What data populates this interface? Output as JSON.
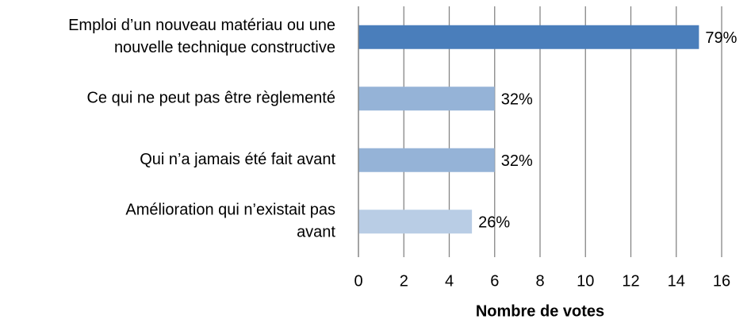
{
  "chart_data": {
    "type": "bar",
    "orientation": "horizontal",
    "categories": [
      "Emploi d’un nouveau matériau ou une nouvelle technique constructive",
      "Ce qui ne peut pas être règlementé",
      "Qui n’a jamais été fait avant",
      "Amélioration qui n’existait pas avant"
    ],
    "values": [
      15,
      6,
      6,
      5
    ],
    "annotations": [
      "79%",
      "32%",
      "32%",
      "26%"
    ],
    "colors": [
      "#4a7ebb",
      "#95b3d7",
      "#95b3d7",
      "#b9cde5"
    ],
    "xlabel": "Nombre de votes",
    "xlim": [
      0,
      16
    ],
    "xticks": [
      0,
      2,
      4,
      6,
      8,
      10,
      12,
      14,
      16
    ],
    "grid": true
  }
}
